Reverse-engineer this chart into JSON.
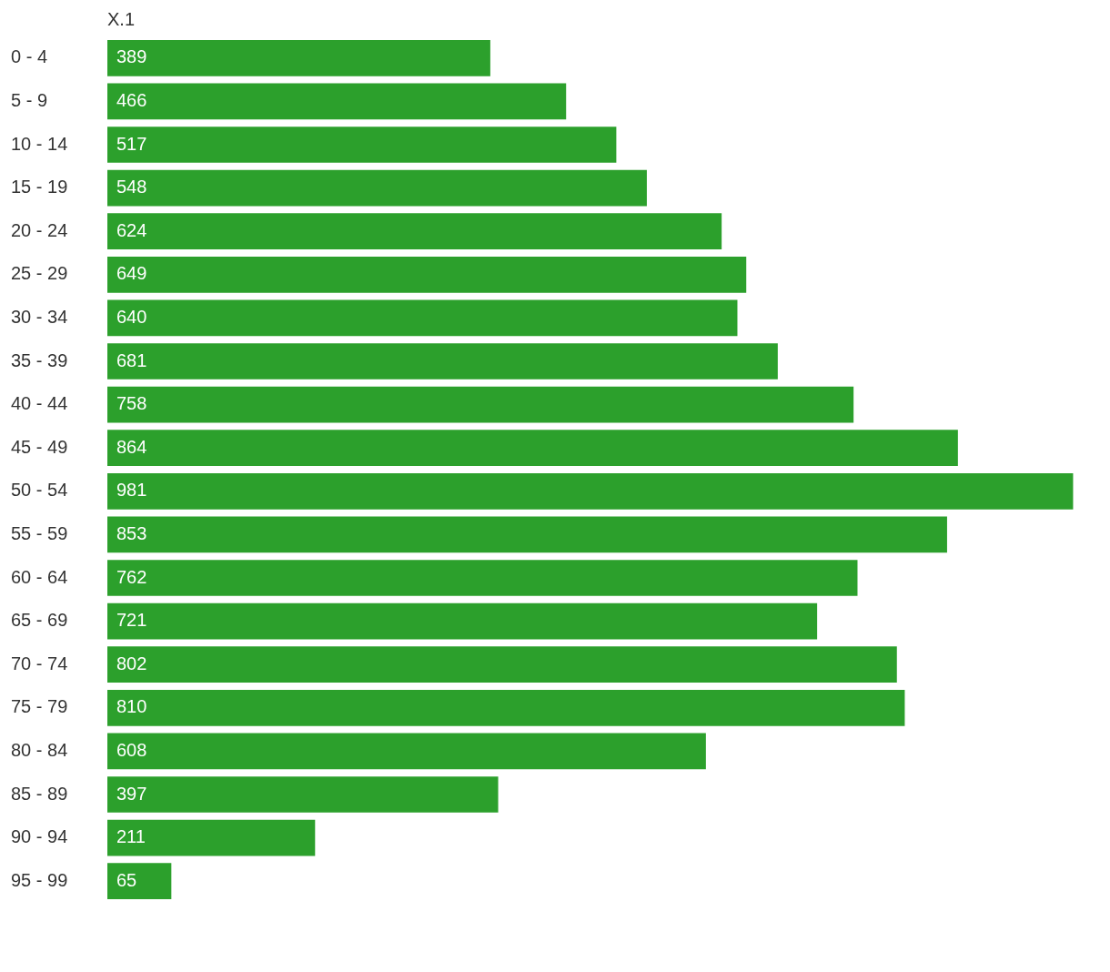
{
  "chart_data": {
    "type": "bar",
    "orientation": "horizontal",
    "title": "X.1",
    "categories": [
      "0 - 4",
      "5 - 9",
      "10 - 14",
      "15 - 19",
      "20 - 24",
      "25 - 29",
      "30 - 34",
      "35 - 39",
      "40 - 44",
      "45 - 49",
      "50 - 54",
      "55 - 59",
      "60 - 64",
      "65 - 69",
      "70 - 74",
      "75 - 79",
      "80 - 84",
      "85 - 89",
      "90 - 94",
      "95 - 99"
    ],
    "values": [
      389,
      466,
      517,
      548,
      624,
      649,
      640,
      681,
      758,
      864,
      981,
      853,
      762,
      721,
      802,
      810,
      608,
      397,
      211,
      65
    ],
    "color": "#2ca02c",
    "data_labels": true,
    "tick_labels": "y"
  }
}
